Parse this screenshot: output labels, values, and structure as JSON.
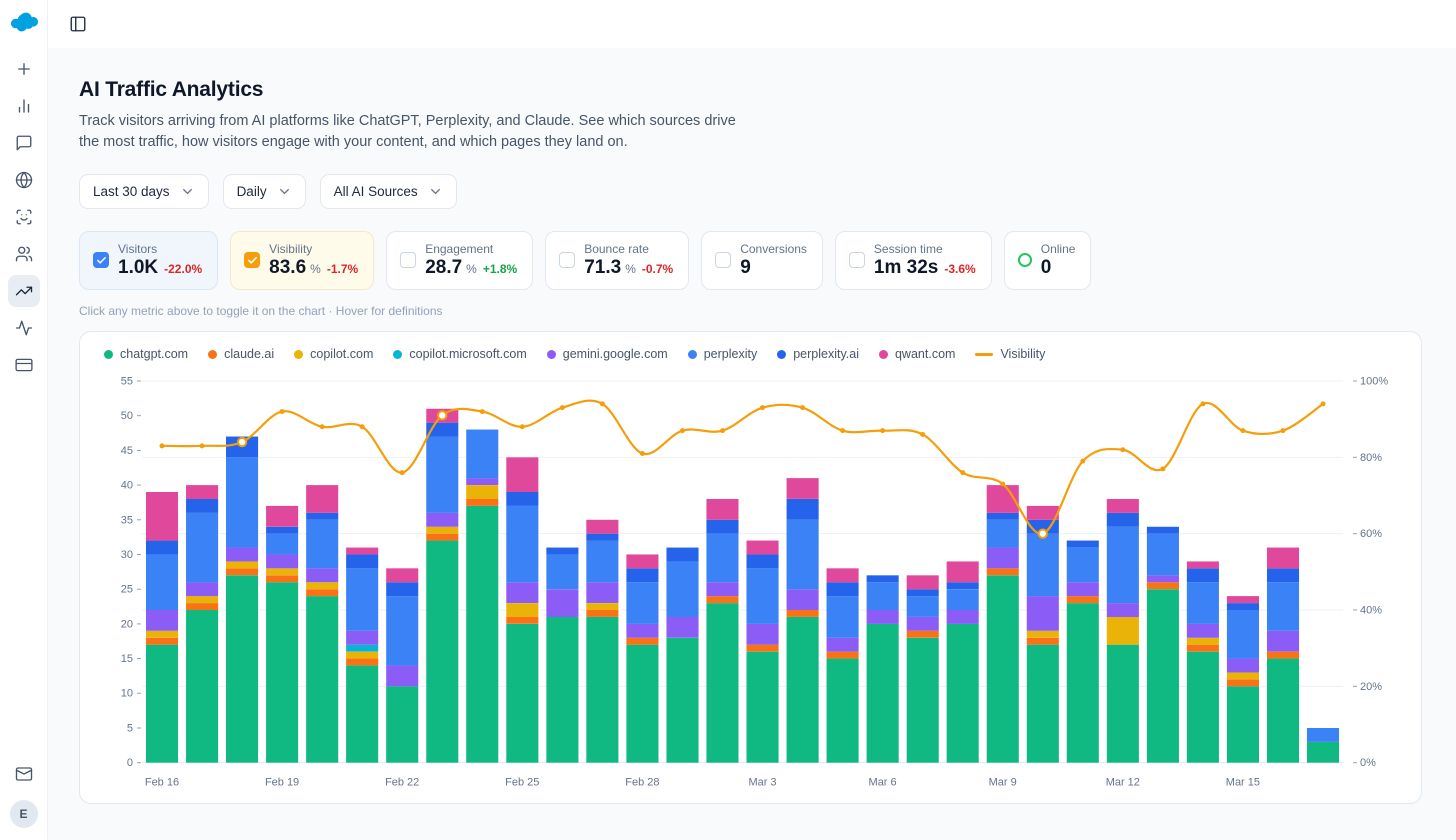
{
  "header": {
    "title": "AI Traffic Analytics",
    "description": "Track visitors arriving from AI platforms like ChatGPT, Perplexity, and Claude. See which sources drive the most traffic, how visitors engage with your content, and which pages they land on."
  },
  "filters": [
    {
      "label": "Last 30 days"
    },
    {
      "label": "Daily"
    },
    {
      "label": "All AI Sources"
    }
  ],
  "metrics": {
    "hint": "Click any metric above to toggle it on the chart · Hover for definitions",
    "cards": [
      {
        "label": "Visitors",
        "value": "1.0K",
        "delta": "-22.0%",
        "selected": true,
        "accent": "#3b82f6"
      },
      {
        "label": "Visibility",
        "value": "83.6",
        "suffix": "%",
        "delta": "-1.7%",
        "selected": true,
        "accent": "#f59e0b"
      },
      {
        "label": "Engagement",
        "value": "28.7",
        "suffix": "%",
        "delta": "+1.8%",
        "selected": false
      },
      {
        "label": "Bounce rate",
        "value": "71.3",
        "suffix": "%",
        "delta": "-0.7%",
        "selected": false
      },
      {
        "label": "Conversions",
        "value": "9",
        "selected": false
      },
      {
        "label": "Session time",
        "value": "1m 32s",
        "delta": "-3.6%",
        "selected": false
      },
      {
        "label": "Online",
        "value": "0",
        "indicator": "green-ring"
      }
    ]
  },
  "user": {
    "avatar_initial": "E"
  },
  "chart_data": {
    "type": "bar",
    "stacked": true,
    "title": "AI traffic by source with Visibility overlay",
    "categories": [
      "Feb 16",
      "Feb 17",
      "Feb 18",
      "Feb 19",
      "Feb 20",
      "Feb 21",
      "Feb 22",
      "Feb 23",
      "Feb 24",
      "Feb 25",
      "Feb 26",
      "Feb 27",
      "Feb 28",
      "Mar 1",
      "Mar 2",
      "Mar 3",
      "Mar 4",
      "Mar 5",
      "Mar 6",
      "Mar 7",
      "Mar 8",
      "Mar 9",
      "Mar 10",
      "Mar 11",
      "Mar 12",
      "Mar 13",
      "Mar 14",
      "Mar 15",
      "Mar 16",
      "Mar 17"
    ],
    "x_label_every": 3,
    "left_axis": {
      "min": 0,
      "max": 55,
      "step": 5
    },
    "right_axis": {
      "min": 0,
      "max": 100,
      "step": 20,
      "suffix": "%"
    },
    "series": [
      {
        "name": "chatgpt.com",
        "color": "#10b981",
        "values": [
          17,
          22,
          27,
          26,
          24,
          14,
          11,
          32,
          37,
          20,
          21,
          21,
          17,
          18,
          23,
          16,
          21,
          15,
          20,
          18,
          20,
          27,
          17,
          23,
          17,
          25,
          16,
          11,
          15,
          3
        ]
      },
      {
        "name": "claude.ai",
        "color": "#f97316",
        "values": [
          1,
          1,
          1,
          1,
          1,
          1,
          0,
          1,
          1,
          1,
          0,
          1,
          1,
          0,
          1,
          1,
          1,
          1,
          0,
          1,
          0,
          1,
          1,
          1,
          0,
          1,
          1,
          1,
          1,
          0
        ]
      },
      {
        "name": "copilot.com",
        "color": "#eab308",
        "values": [
          1,
          1,
          1,
          1,
          1,
          1,
          0,
          1,
          2,
          2,
          0,
          1,
          0,
          0,
          0,
          0,
          0,
          0,
          0,
          0,
          0,
          0,
          1,
          0,
          4,
          0,
          1,
          1,
          0,
          0
        ]
      },
      {
        "name": "copilot.microsoft.com",
        "color": "#06b6d4",
        "values": [
          0,
          0,
          0,
          0,
          0,
          1,
          0,
          0,
          0,
          0,
          0,
          0,
          0,
          0,
          0,
          0,
          0,
          0,
          0,
          0,
          0,
          0,
          0,
          0,
          0,
          0,
          0,
          0,
          0,
          0
        ]
      },
      {
        "name": "gemini.google.com",
        "color": "#8b5cf6",
        "values": [
          3,
          2,
          2,
          2,
          2,
          2,
          3,
          2,
          1,
          3,
          4,
          3,
          2,
          3,
          2,
          3,
          3,
          2,
          2,
          2,
          2,
          3,
          5,
          2,
          2,
          1,
          2,
          2,
          3,
          0
        ]
      },
      {
        "name": "perplexity",
        "color": "#3b82f6",
        "values": [
          8,
          10,
          13,
          3,
          7,
          9,
          10,
          11,
          7,
          11,
          5,
          6,
          6,
          8,
          7,
          8,
          10,
          6,
          4,
          3,
          3,
          4,
          9,
          5,
          11,
          6,
          6,
          7,
          7,
          2
        ]
      },
      {
        "name": "perplexity.ai",
        "color": "#2563eb",
        "values": [
          2,
          2,
          3,
          1,
          1,
          2,
          2,
          2,
          0,
          2,
          1,
          1,
          2,
          2,
          2,
          2,
          3,
          2,
          1,
          1,
          1,
          1,
          2,
          1,
          2,
          1,
          2,
          1,
          2,
          0
        ]
      },
      {
        "name": "qwant.com",
        "color": "#e0489b",
        "values": [
          7,
          2,
          0,
          3,
          4,
          1,
          2,
          2,
          0,
          5,
          0,
          2,
          2,
          0,
          3,
          2,
          3,
          2,
          0,
          2,
          3,
          4,
          2,
          0,
          2,
          0,
          1,
          1,
          3,
          0
        ]
      }
    ],
    "line": {
      "name": "Visibility",
      "color": "#f59e0b",
      "unit": "%",
      "values": [
        83,
        83,
        84,
        92,
        88,
        88,
        76,
        91,
        92,
        88,
        93,
        94,
        81,
        87,
        87,
        93,
        93,
        87,
        87,
        86,
        76,
        73,
        60,
        79,
        82,
        77,
        94,
        87,
        87,
        94
      ],
      "highlight_indices": [
        2,
        7,
        22
      ]
    }
  }
}
